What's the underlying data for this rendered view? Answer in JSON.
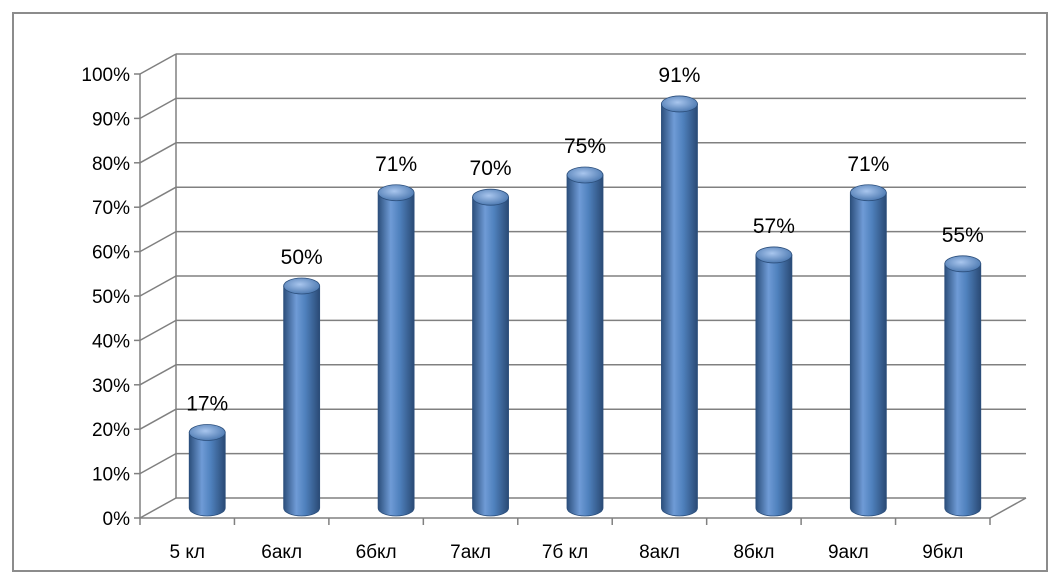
{
  "chart_data": {
    "type": "bar",
    "style": "3d-cylinder",
    "categories": [
      "5 кл",
      "6акл",
      "6бкл",
      "7акл",
      "7б кл",
      "8акл",
      "8бкл",
      "9акл",
      "9бкл"
    ],
    "values": [
      17,
      50,
      71,
      70,
      75,
      91,
      57,
      71,
      55
    ],
    "data_labels": [
      "17%",
      "50%",
      "71%",
      "70%",
      "75%",
      "91%",
      "57%",
      "71%",
      "55%"
    ],
    "y_ticks": [
      "0%",
      "10%",
      "20%",
      "30%",
      "40%",
      "50%",
      "60%",
      "70%",
      "80%",
      "90%",
      "100%"
    ],
    "ylim": [
      0,
      100
    ],
    "grid": true,
    "legend": "none",
    "title": "",
    "xlabel": "",
    "ylabel": "",
    "colors": {
      "bar": "#4f81bd",
      "bar_dark": "#2c4f7c",
      "bar_light": "#8fb3e3",
      "grid": "#808080",
      "frame": "#8c8c8c"
    }
  }
}
